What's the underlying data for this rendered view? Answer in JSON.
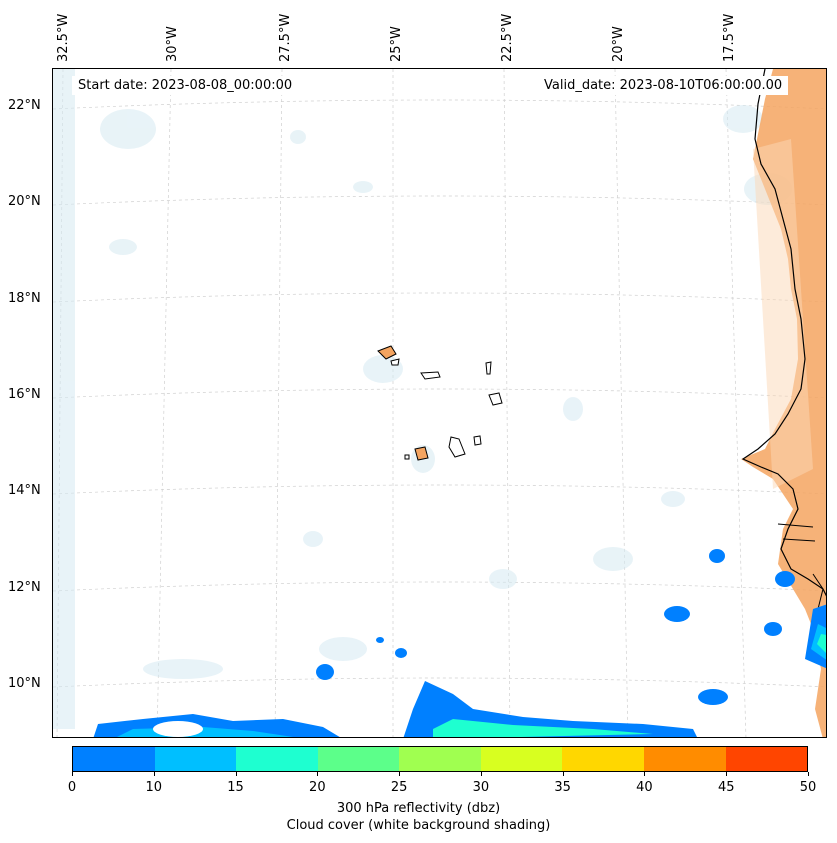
{
  "map": {
    "start_date": "Start date: 2023-08-08_00:00:00",
    "valid_date": "Valid_date: 2023-08-10T06:00:00.00",
    "lon_labels": [
      "32.5°W",
      "30°W",
      "27.5°W",
      "25°W",
      "22.5°W",
      "20°W",
      "17.5°W"
    ],
    "lat_labels": [
      "22°N",
      "20°N",
      "18°N",
      "16°N",
      "14°N",
      "12°N",
      "10°N"
    ],
    "colors": {
      "land_fill": "#f4a460",
      "coast": "#000000",
      "cloud_shading": "#d6eaf2",
      "grid": "#cccccc"
    }
  },
  "colorbar": {
    "ticks": [
      "0",
      "10",
      "15",
      "20",
      "25",
      "30",
      "35",
      "40",
      "45",
      "50"
    ],
    "colors": [
      "#0080ff",
      "#00bfff",
      "#1effd0",
      "#5cff8a",
      "#a0ff50",
      "#d8ff20",
      "#ffd700",
      "#ff8c00",
      "#ff4500"
    ],
    "label_line1": "300 hPa reflectivity (dbz)",
    "label_line2": "Cloud cover (white background shading)"
  }
}
